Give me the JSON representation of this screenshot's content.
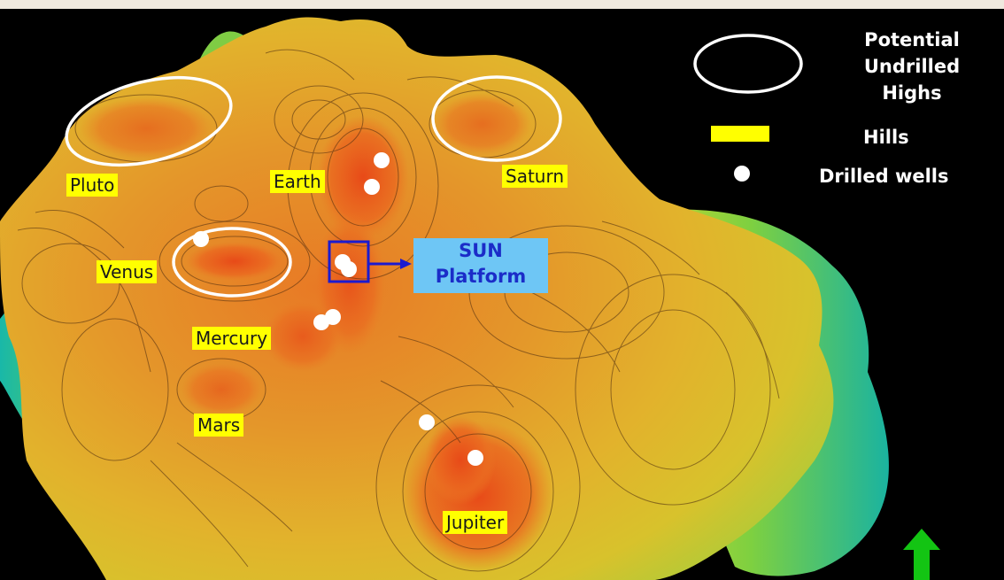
{
  "fields": [
    {
      "name": "Pluto"
    },
    {
      "name": "Earth"
    },
    {
      "name": "Saturn"
    },
    {
      "name": "Venus"
    },
    {
      "name": "Mercury"
    },
    {
      "name": "Mars"
    },
    {
      "name": "Jupiter"
    }
  ],
  "platform": {
    "line1": "SUN",
    "line2": "Platform"
  },
  "legend": {
    "undrilled": {
      "line1": "Potential",
      "line2": "Undrilled",
      "line3": "Highs"
    },
    "hills": "Hills",
    "wells": "Drilled wells"
  },
  "colors": {
    "background": "#000000",
    "label_fill": "#ffff00",
    "platform_fill": "#6ec6f5",
    "platform_text": "#1b2cc8",
    "ellipse_stroke": "#ffffff",
    "well_dot": "#ffffff",
    "north_arrow": "#13c413"
  },
  "icons": {
    "north": "north-arrow-icon",
    "well": "drilled-well-icon"
  }
}
